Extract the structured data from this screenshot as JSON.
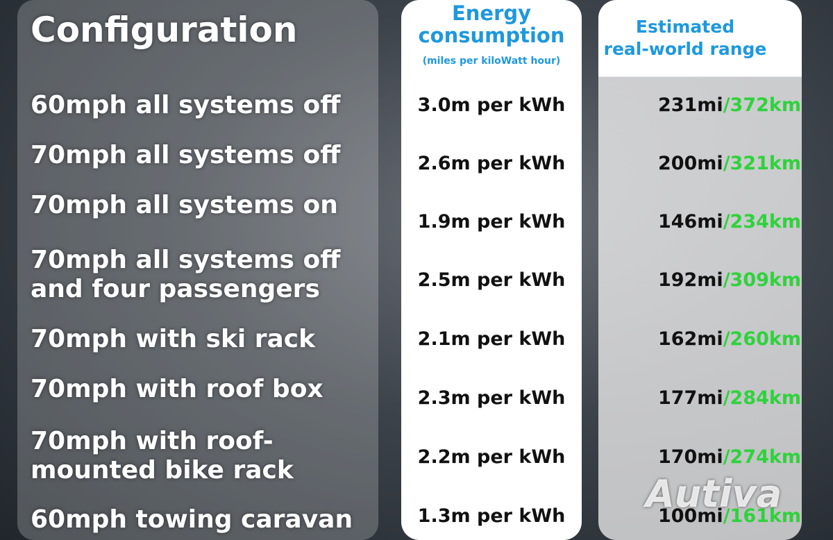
{
  "header": {
    "configuration": "Configuration",
    "consumption_title": [
      "Energy",
      "consumption"
    ],
    "consumption_unit": "(miles per kiloWatt hour)",
    "range_title": [
      "Estimated",
      "real-world range"
    ]
  },
  "rows": [
    {
      "configuration": [
        "60mph all systems off"
      ],
      "consumption": "3.0m per kWh",
      "range_mi": "231mi",
      "range_km": "/372km"
    },
    {
      "configuration": [
        "70mph all systems off"
      ],
      "consumption": "2.6m per kWh",
      "range_mi": "200mi",
      "range_km": "/321km"
    },
    {
      "configuration": [
        "70mph all systems on"
      ],
      "consumption": "1.9m per kWh",
      "range_mi": "146mi",
      "range_km": "/234km"
    },
    {
      "configuration": [
        "70mph all systems off",
        "and four passengers"
      ],
      "consumption": "2.5m per kWh",
      "range_mi": "192mi",
      "range_km": "/309km"
    },
    {
      "configuration": [
        "70mph with ski rack"
      ],
      "consumption": "2.1m per kWh",
      "range_mi": "162mi",
      "range_km": "/260km"
    },
    {
      "configuration": [
        "70mph with roof box"
      ],
      "consumption": "2.3m per kWh",
      "range_mi": "177mi",
      "range_km": "/284km"
    },
    {
      "configuration": [
        "70mph with roof-",
        "mounted bike rack"
      ],
      "consumption": "2.2m per kWh",
      "range_mi": "170mi",
      "range_km": "/274km"
    },
    {
      "configuration": [
        "60mph towing caravan"
      ],
      "consumption": "1.3m per kWh",
      "range_mi": "100mi",
      "range_km": "/161km"
    }
  ],
  "watermark": "Autiva"
}
